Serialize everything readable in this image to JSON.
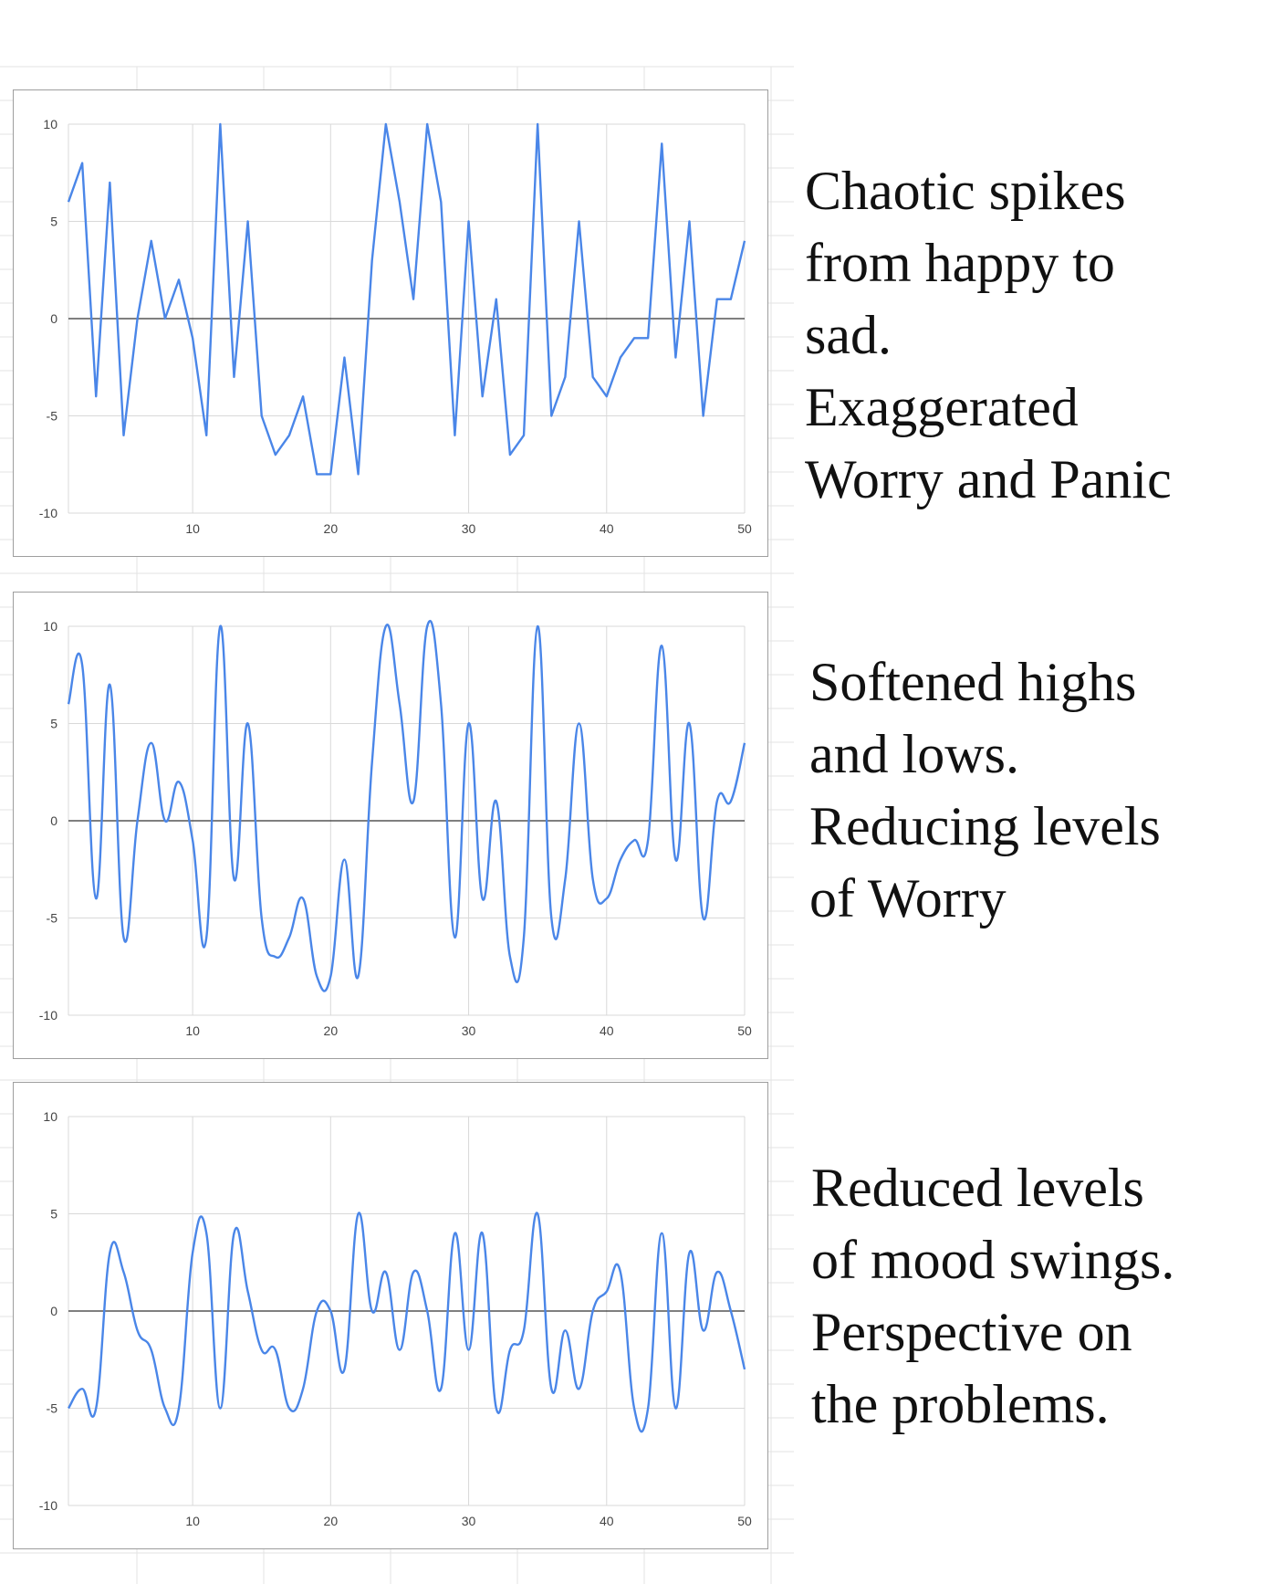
{
  "colors": {
    "line": "#4a86e8",
    "grid": "#d9d9d9",
    "zero_line": "#333333",
    "sheet_grid": "#e3e3e3"
  },
  "chart_data": [
    {
      "type": "line",
      "curve": "straight",
      "title": "",
      "xlabel": "",
      "ylabel": "",
      "xlim": [
        1,
        50
      ],
      "ylim": [
        -10,
        10
      ],
      "xticks": [
        10,
        20,
        30,
        40,
        50
      ],
      "yticks": [
        10,
        5,
        0,
        -5,
        -10
      ],
      "grid": true,
      "legend": "none",
      "series": [
        {
          "values": [
            6,
            8,
            -4,
            7,
            -6,
            0,
            4,
            0,
            2,
            -1,
            -6,
            10,
            -3,
            5,
            -5,
            -7,
            -6,
            -4,
            -8,
            -8,
            -2,
            -8,
            3,
            10,
            6,
            1,
            10,
            6,
            -6,
            5,
            -4,
            1,
            -7,
            -6,
            10,
            -5,
            -3,
            5,
            -3,
            -4,
            -2,
            -1,
            -1,
            9,
            -2,
            5,
            -5,
            1,
            1,
            4
          ]
        }
      ]
    },
    {
      "type": "line",
      "curve": "smooth",
      "title": "",
      "xlabel": "",
      "ylabel": "",
      "xlim": [
        1,
        50
      ],
      "ylim": [
        -10,
        10
      ],
      "xticks": [
        10,
        20,
        30,
        40,
        50
      ],
      "yticks": [
        10,
        5,
        0,
        -5,
        -10
      ],
      "grid": true,
      "legend": "none",
      "series": [
        {
          "values": [
            6,
            8,
            -4,
            7,
            -6,
            0,
            4,
            0,
            2,
            -1,
            -6,
            10,
            -3,
            5,
            -5,
            -7,
            -6,
            -4,
            -8,
            -8,
            -2,
            -8,
            3,
            10,
            6,
            1,
            10,
            6,
            -6,
            5,
            -4,
            1,
            -7,
            -6,
            10,
            -5,
            -3,
            5,
            -3,
            -4,
            -2,
            -1,
            -1,
            9,
            -2,
            5,
            -5,
            1,
            1,
            4
          ]
        }
      ]
    },
    {
      "type": "line",
      "curve": "smooth",
      "title": "",
      "xlabel": "",
      "ylabel": "",
      "xlim": [
        1,
        50
      ],
      "ylim": [
        -10,
        10
      ],
      "xticks": [
        10,
        20,
        30,
        40,
        50
      ],
      "yticks": [
        10,
        5,
        0,
        -5,
        -10
      ],
      "grid": true,
      "legend": "none",
      "series": [
        {
          "values": [
            -5,
            -4,
            -5,
            3,
            2,
            -1,
            -2,
            -5,
            -5,
            3,
            4,
            -5,
            4,
            1,
            -2,
            -2,
            -5,
            -4,
            0,
            0,
            -3,
            5,
            0,
            2,
            -2,
            2,
            0,
            -4,
            4,
            -2,
            4,
            -5,
            -2,
            -1,
            5,
            -4,
            -1,
            -4,
            0,
            1,
            2,
            -5,
            -5,
            4,
            -5,
            3,
            -1,
            2,
            0,
            -3
          ]
        }
      ]
    }
  ],
  "captions": [
    [
      "Chaotic spikes",
      "from happy to",
      "sad.",
      "Exaggerated",
      "Worry and Panic"
    ],
    [
      "Softened highs",
      "and lows.",
      "Reducing levels",
      "of Worry"
    ],
    [
      "Reduced levels",
      "of mood swings.",
      "Perspective on",
      "the problems."
    ]
  ]
}
